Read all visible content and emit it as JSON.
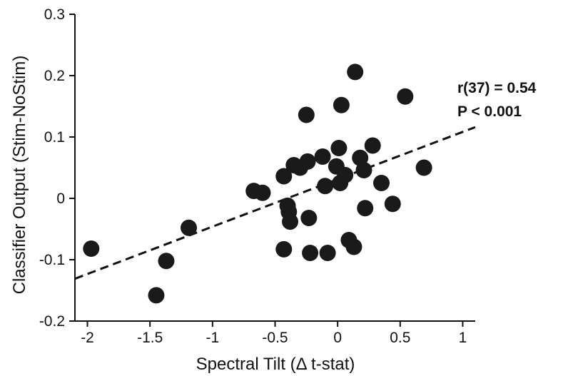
{
  "chart_data": {
    "type": "scatter",
    "title": "",
    "xlabel": "Spectral Tilt (Δ t-stat)",
    "ylabel": "Classifier Output (Stim-NoStim)",
    "xlim": [
      -2.1,
      1.1
    ],
    "ylim": [
      -0.2,
      0.3
    ],
    "xticks": [
      -2,
      -1.5,
      -1,
      -0.5,
      0,
      0.5,
      1
    ],
    "xtick_labels": [
      "-2",
      "-1.5",
      "-1",
      "-0.5",
      "0",
      "0.5",
      "1"
    ],
    "yticks": [
      -0.2,
      -0.1,
      0,
      0.1,
      0.2,
      0.3
    ],
    "ytick_labels": [
      "-0.2",
      "-0.1",
      "0",
      "0.1",
      "0.2",
      "0.3"
    ],
    "grid": false,
    "series": [
      {
        "points": [
          [
            -1.97,
            -0.082
          ],
          [
            -1.45,
            -0.158
          ],
          [
            -1.37,
            -0.102
          ],
          [
            -1.19,
            -0.048
          ],
          [
            -0.67,
            0.012
          ],
          [
            -0.6,
            0.009
          ],
          [
            -0.43,
            0.036
          ],
          [
            -0.43,
            -0.083
          ],
          [
            -0.4,
            -0.012
          ],
          [
            -0.39,
            -0.022
          ],
          [
            -0.38,
            -0.038
          ],
          [
            -0.35,
            0.054
          ],
          [
            -0.3,
            0.05
          ],
          [
            -0.25,
            0.136
          ],
          [
            -0.24,
            0.06
          ],
          [
            -0.23,
            -0.032
          ],
          [
            -0.22,
            -0.089
          ],
          [
            -0.12,
            0.068
          ],
          [
            -0.1,
            0.02
          ],
          [
            -0.08,
            -0.089
          ],
          [
            -0.01,
            0.052
          ],
          [
            0.01,
            0.082
          ],
          [
            0.02,
            0.025
          ],
          [
            0.03,
            0.152
          ],
          [
            0.06,
            0.038
          ],
          [
            0.09,
            -0.068
          ],
          [
            0.13,
            -0.079
          ],
          [
            0.14,
            0.206
          ],
          [
            0.18,
            0.066
          ],
          [
            0.21,
            0.046
          ],
          [
            0.22,
            -0.016
          ],
          [
            0.28,
            0.086
          ],
          [
            0.35,
            0.025
          ],
          [
            0.44,
            -0.009
          ],
          [
            0.54,
            0.166
          ],
          [
            0.69,
            0.05
          ]
        ]
      }
    ],
    "fit_line": {
      "x": [
        -2.1,
        1.1
      ],
      "y": [
        -0.131,
        0.116
      ],
      "style": "dashed"
    },
    "annotations": [
      "r(37) = 0.54",
      "P < 0.001"
    ],
    "colors": {
      "marker": "#1a1a1a",
      "line": "#111111",
      "axis": "#111111"
    }
  }
}
